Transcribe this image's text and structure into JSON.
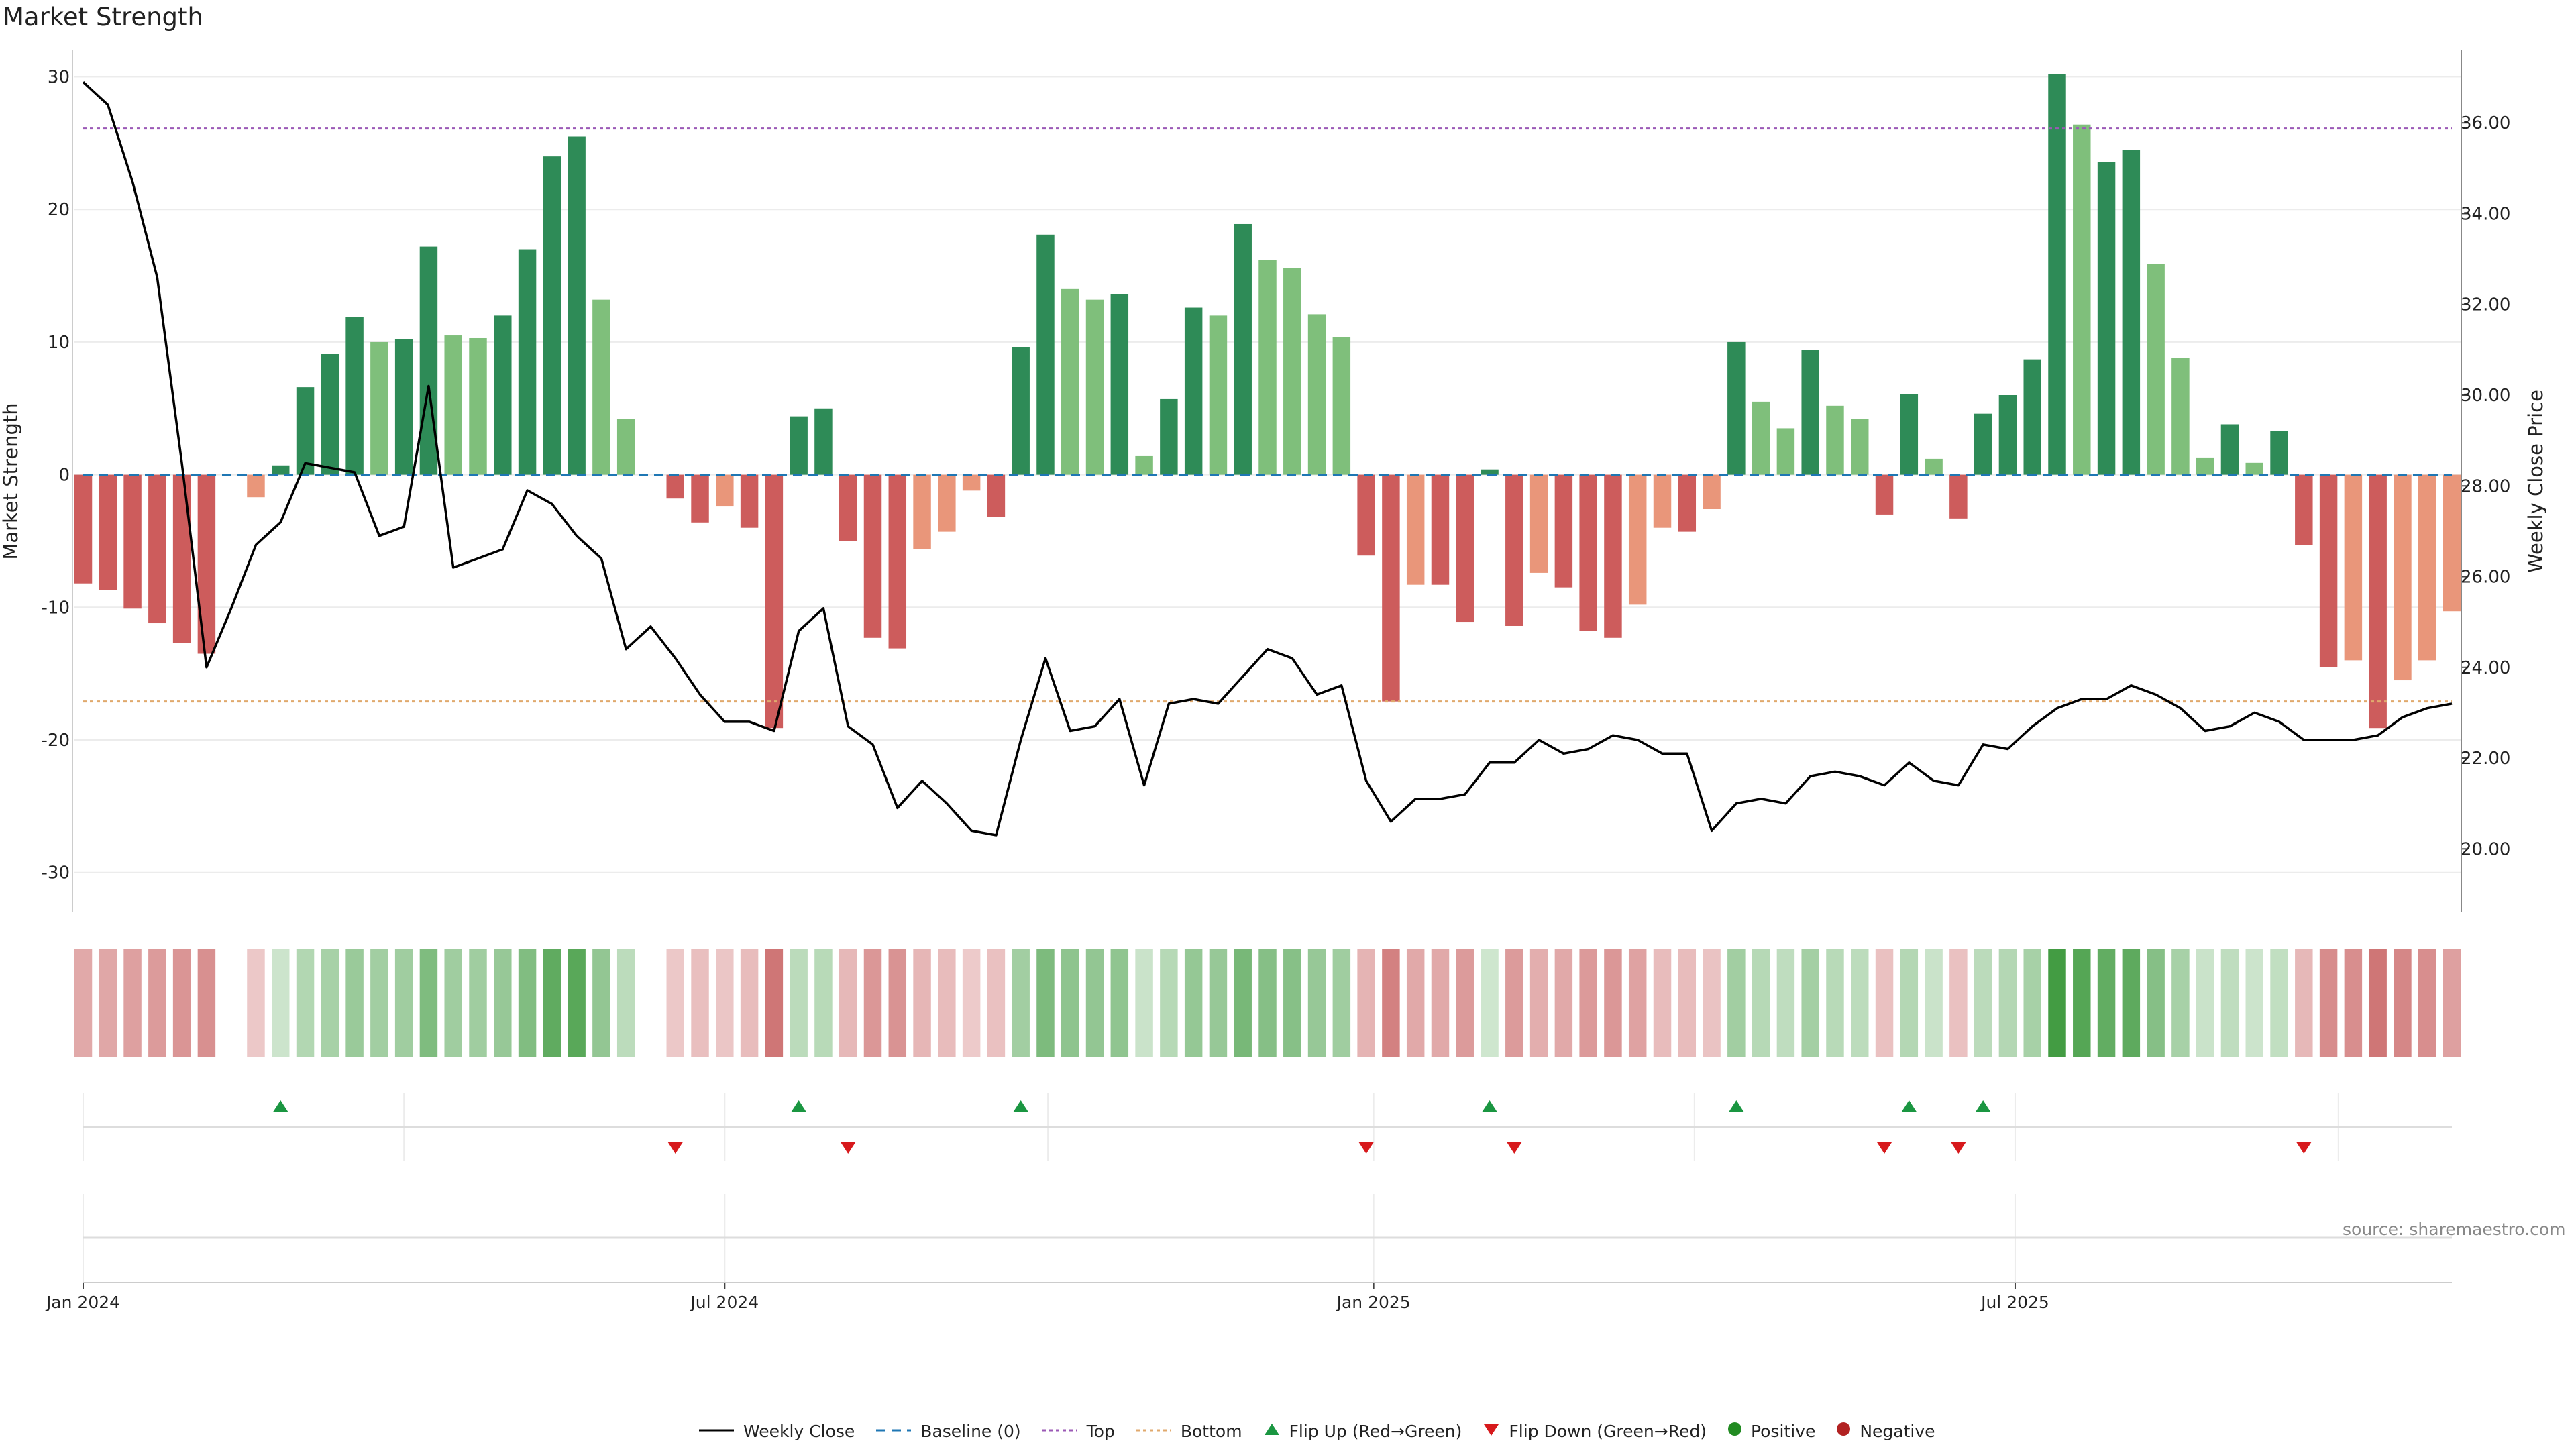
{
  "title": "Market Strength",
  "source": "source: sharemaestro.com",
  "colors": {
    "strong_green": "#2e8b57",
    "light_green": "#7fbf7b",
    "strong_red": "#cd5c5c",
    "light_red": "#e9967a",
    "line": "#000000",
    "top_line": "#9b59b6",
    "bottom_line": "#e0a96d",
    "baseline": "#1f77b4",
    "flip_up": "#1a9641",
    "flip_down": "#d7191c",
    "positive": "#228b22",
    "negative": "#b22222"
  },
  "legend": [
    {
      "key": "weekly_close",
      "label": "Weekly Close"
    },
    {
      "key": "baseline",
      "label": "Baseline (0)"
    },
    {
      "key": "top",
      "label": "Top"
    },
    {
      "key": "bottom",
      "label": "Bottom"
    },
    {
      "key": "flip_up",
      "label": "Flip Up (Red→Green)"
    },
    {
      "key": "flip_down",
      "label": "Flip Down (Green→Red)"
    },
    {
      "key": "positive",
      "label": "Positive"
    },
    {
      "key": "negative",
      "label": "Negative"
    }
  ],
  "chart_data": {
    "type": "bar",
    "title": "Market Strength",
    "ylabel": "Market Strength",
    "y2label": "Weekly Close Price",
    "ylim": [
      -33,
      32
    ],
    "y2lim": [
      18.6,
      37.6
    ],
    "yticks": [
      30,
      20,
      10,
      0,
      -10,
      -20,
      -30
    ],
    "y2ticks": [
      "36.00",
      "34.00",
      "32.00",
      "30.00",
      "28.00",
      "26.00",
      "24.00",
      "22.00",
      "20.00"
    ],
    "top_level": 26.1,
    "bottom_level": -17.1,
    "x_start": "2024-01-01",
    "x_tick_labels": [
      {
        "label": "Jan 2024",
        "week": 0
      },
      {
        "label": "Jul 2024",
        "week": 26
      },
      {
        "label": "Jan 2025",
        "week": 52.3
      },
      {
        "label": "Jul 2025",
        "week": 78.3
      }
    ],
    "strength": [
      -8.2,
      -8.7,
      -10.1,
      -11.2,
      -12.7,
      -13.5,
      null,
      -1.7,
      0.7,
      6.6,
      9.1,
      11.9,
      10.0,
      10.2,
      17.2,
      10.5,
      10.3,
      12.0,
      17.0,
      24.0,
      25.5,
      13.2,
      4.2,
      null,
      -1.8,
      -3.6,
      -2.4,
      -4.0,
      -19.1,
      4.4,
      5.0,
      -5.0,
      -12.3,
      -13.1,
      -5.6,
      -4.3,
      -1.2,
      -3.2,
      9.6,
      18.1,
      14.0,
      13.2,
      13.6,
      1.4,
      5.7,
      12.6,
      12.0,
      18.9,
      16.2,
      15.6,
      12.1,
      10.4,
      -6.1,
      -17.1,
      -8.3,
      -8.3,
      -11.1,
      0.4,
      -11.4,
      -7.4,
      -8.5,
      -11.8,
      -12.3,
      -9.8,
      -4.0,
      -4.3,
      -2.6,
      10.0,
      5.5,
      3.5,
      9.4,
      5.2,
      4.2,
      -3.0,
      6.1,
      1.2,
      -3.3,
      4.6,
      6.0,
      8.7,
      30.2,
      26.4,
      23.6,
      24.5,
      15.9,
      8.8,
      1.3,
      3.8,
      0.9,
      3.3,
      -5.3,
      -14.5,
      -14.0,
      -19.1,
      -15.5,
      -14.0,
      -10.3
    ],
    "strong": [
      true,
      true,
      true,
      true,
      true,
      true,
      false,
      false,
      true,
      true,
      true,
      true,
      false,
      true,
      true,
      false,
      false,
      true,
      true,
      true,
      true,
      false,
      false,
      false,
      true,
      true,
      false,
      true,
      true,
      true,
      true,
      true,
      true,
      true,
      false,
      false,
      false,
      true,
      true,
      true,
      false,
      false,
      true,
      false,
      true,
      true,
      false,
      true,
      false,
      false,
      false,
      false,
      true,
      true,
      false,
      true,
      true,
      true,
      true,
      false,
      true,
      true,
      true,
      false,
      false,
      true,
      false,
      true,
      false,
      false,
      true,
      false,
      false,
      true,
      true,
      false,
      true,
      true,
      true,
      true,
      true,
      false,
      true,
      true,
      false,
      false,
      false,
      true,
      false,
      true,
      true,
      true,
      false,
      true,
      false,
      false,
      false
    ],
    "weekly_close": [
      36.9,
      36.4,
      34.7,
      32.6,
      28.5,
      24.0,
      25.3,
      26.7,
      27.2,
      28.5,
      28.4,
      28.3,
      26.9,
      27.1,
      30.2,
      26.2,
      26.4,
      26.6,
      27.9,
      27.6,
      26.9,
      26.4,
      24.4,
      24.9,
      24.2,
      23.4,
      22.8,
      22.8,
      22.6,
      24.8,
      25.3,
      22.7,
      22.3,
      20.9,
      21.5,
      21.0,
      20.4,
      20.3,
      22.4,
      24.2,
      22.6,
      22.7,
      23.3,
      21.4,
      23.2,
      23.3,
      23.2,
      23.8,
      24.4,
      24.2,
      23.4,
      23.6,
      21.5,
      20.6,
      21.1,
      21.1,
      21.2,
      21.9,
      21.9,
      22.4,
      22.1,
      22.2,
      22.5,
      22.4,
      22.1,
      22.1,
      20.4,
      21.0,
      21.1,
      21.0,
      21.6,
      21.7,
      21.6,
      21.4,
      21.9,
      21.5,
      21.4,
      22.3,
      22.2,
      22.7,
      23.1,
      23.3,
      23.3,
      23.6,
      23.4,
      23.1,
      22.6,
      22.7,
      23.0,
      22.8,
      22.4,
      22.4,
      22.4,
      22.5,
      22.9,
      23.1,
      23.2
    ],
    "flips_up_weeks": [
      8,
      29,
      38,
      57,
      67,
      74,
      77
    ],
    "flips_down_weeks": [
      24,
      31,
      52,
      58,
      73,
      76,
      90
    ]
  }
}
